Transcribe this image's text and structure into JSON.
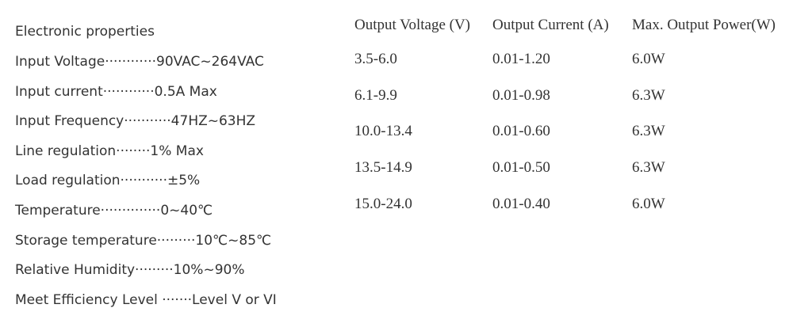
{
  "properties": {
    "title": "Electronic properties",
    "items": [
      "Input Voltage············90VAC~264VAC",
      "Input current············0.5A Max",
      "Input Frequency···········47HZ~63HZ",
      "Line regulation········1% Max",
      "Load regulation···········±5%",
      "Temperature··············0~40℃",
      "Storage temperature·········10℃~85℃",
      "Relative Humidity·········10%~90%",
      "Meet Efficiency Level ·······Level V or VI"
    ]
  },
  "table": {
    "header": [
      "Output Voltage (V)",
      "Output Current (A)",
      "Max. Output Power(W)"
    ],
    "rows": [
      [
        "3.5-6.0",
        "0.01-1.20",
        "6.0W"
      ],
      [
        "6.1-9.9",
        "0.01-0.98",
        "6.3W"
      ],
      [
        "10.0-13.4",
        "0.01-0.60",
        "6.3W"
      ],
      [
        "13.5-14.9",
        "0.01-0.50",
        "6.3W"
      ],
      [
        "15.0-24.0",
        "0.01-0.40",
        "6.0W"
      ]
    ]
  }
}
